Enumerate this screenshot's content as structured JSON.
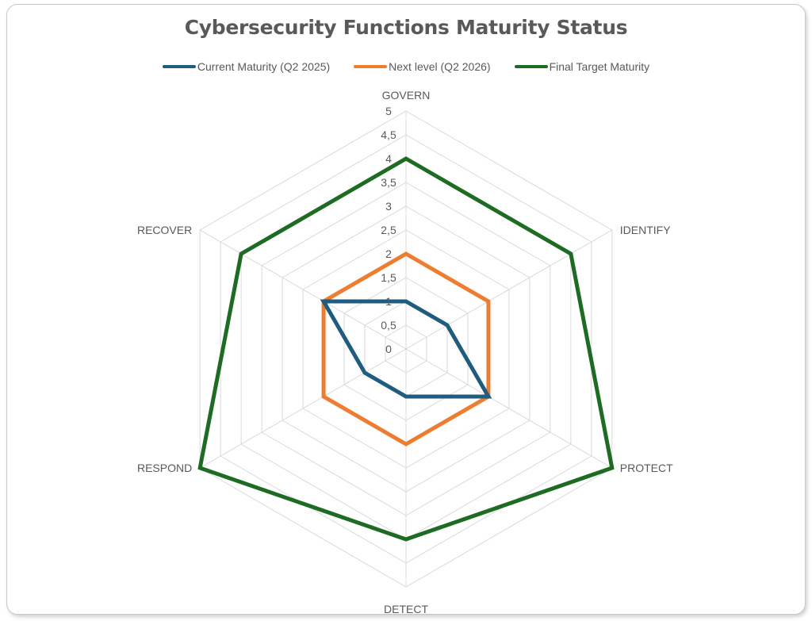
{
  "chart_data": {
    "type": "radar",
    "title": "Cybersecurity Functions Maturity Status",
    "categories": [
      "GOVERN",
      "IDENTIFY",
      "PROTECT",
      "DETECT",
      "RESPOND",
      "RECOVER"
    ],
    "rlim": [
      0,
      5
    ],
    "ticks": [
      "0",
      "0,5",
      "1",
      "1,5",
      "2",
      "2,5",
      "3",
      "3,5",
      "4",
      "4,5",
      "5"
    ],
    "tick_values": [
      0,
      0.5,
      1,
      1.5,
      2,
      2.5,
      3,
      3.5,
      4,
      4.5,
      5
    ],
    "grid": true,
    "legend_position": "top",
    "series": [
      {
        "name": "Current Maturity (Q2 2025)",
        "color": "#1f5c80",
        "values": [
          1,
          1,
          2,
          1,
          1,
          2
        ]
      },
      {
        "name": "Next level (Q2 2026)",
        "color": "#ed7d31",
        "values": [
          2,
          2,
          2,
          2,
          2,
          2
        ]
      },
      {
        "name": "Final Target Maturity",
        "color": "#1e6b24",
        "values": [
          4,
          4,
          5,
          4,
          5,
          4
        ]
      }
    ]
  }
}
